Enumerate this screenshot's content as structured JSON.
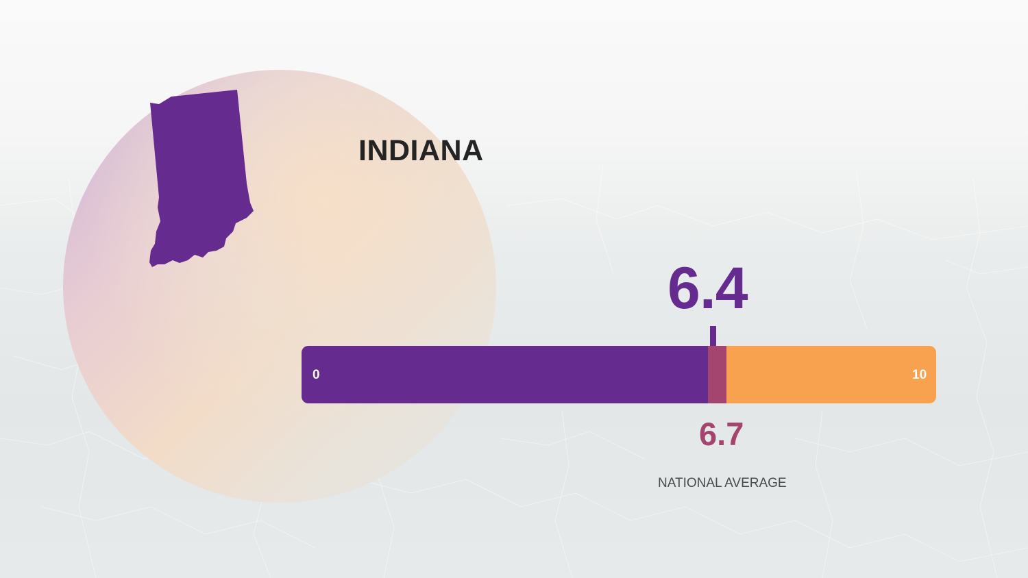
{
  "state": {
    "name": "INDIANA",
    "value_label": "6.4",
    "icon": "indiana-state-silhouette-icon",
    "color": "#652b8f"
  },
  "national": {
    "value_label": "6.7",
    "label": "NATIONAL AVERAGE",
    "color": "#a4456f"
  },
  "scale": {
    "min_label": "0",
    "max_label": "10",
    "remainder_color": "#f8a14e"
  },
  "chart_data": {
    "type": "bar",
    "orientation": "horizontal",
    "range": [
      0,
      10
    ],
    "values": [
      {
        "value": 6.4,
        "label": "INDIANA"
      },
      {
        "value": 6.7,
        "label": "NATIONAL AVERAGE"
      }
    ],
    "tick_labels": [
      "0",
      "10"
    ]
  }
}
